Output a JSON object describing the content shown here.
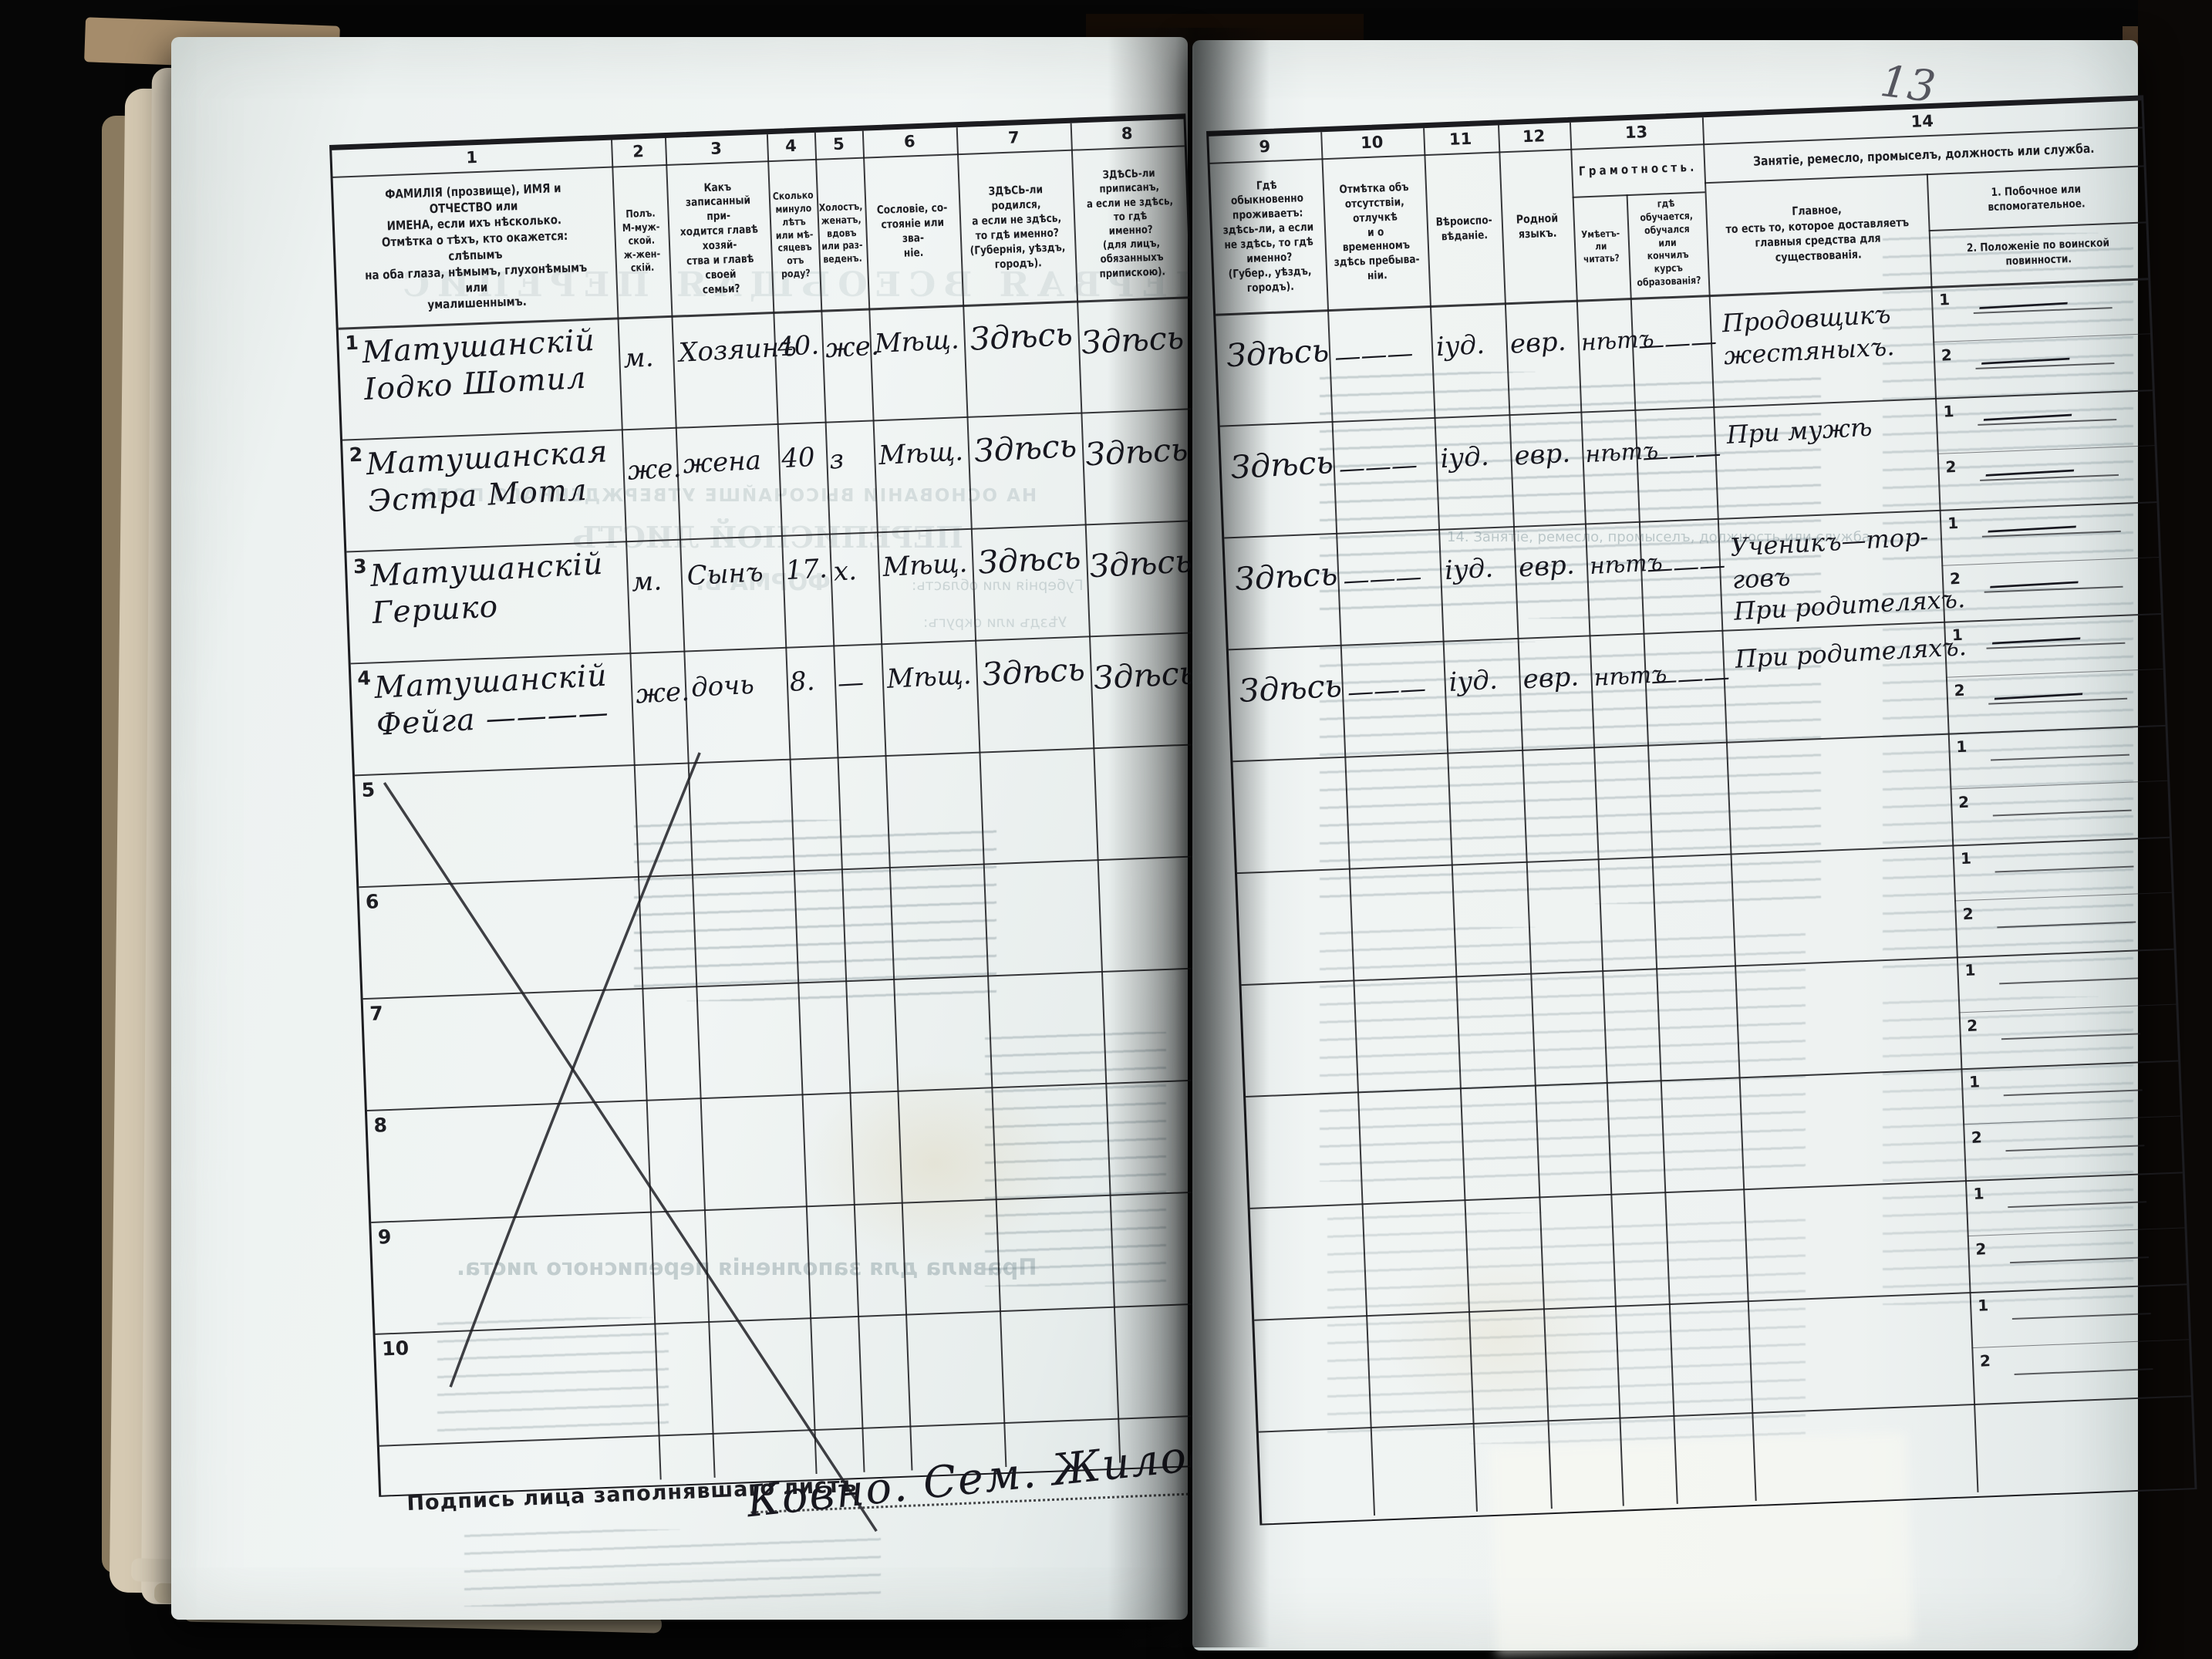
{
  "folio_number": "13",
  "signature": {
    "label": "Подпись лица заполнявшаго листъ",
    "value": "Ковно. Сем. Жилович"
  },
  "table": {
    "sub_labels": [
      "1",
      "2"
    ],
    "columns": [
      {
        "num": "1",
        "header": "ФАМИЛІЯ (прозвище), ИМЯ и ОТЧЕСТВО или\nИМЕНА, если ихъ нѣсколько.\nОтмѣтка о тѣхъ, кто окажется: слѣпымъ\nна оба глаза, нѣмымъ, глухонѣмымъ или\nумалишеннымъ."
      },
      {
        "num": "2",
        "header": "Полъ.\nМ-муж-\nской.\nж-жен-\nскій."
      },
      {
        "num": "3",
        "header": "Какъ записанный при-\nходится главѣ хозяй-\nства и главѣ своей\nсемьи?"
      },
      {
        "num": "4",
        "header": "Сколько\nминуло\nлѣтъ\nили мѣ-\nсяцевъ\nотъ роду?"
      },
      {
        "num": "5",
        "header": "Холостъ,\nженатъ,\nвдовъ\nили раз-\nведенъ."
      },
      {
        "num": "6",
        "header": "Сословіе, со-\nстояніе или зва-\nніе."
      },
      {
        "num": "7",
        "header": "ЗДѢСЬ-ли родился,\nа если не здѣсь,\nто гдѣ именно?\n(Губернія, уѣздъ, городъ)."
      },
      {
        "num": "8",
        "header": "ЗДѢСЬ-ли приписанъ,\nа если не здѣсь, то гдѣ\nименно?\n(для лицъ, обязанныхъ\nприпискою)."
      },
      {
        "num": "9",
        "header": "Гдѣ обыкновенно\nпроживаетъ:\nздѣсь-ли, а если\nне здѣсь, то гдѣ\nименно?\n(Губер., уѣздъ, городъ)."
      },
      {
        "num": "10",
        "header": "Отмѣтка объ\nотсутствіи, отлучкѣ\nи о временномъ\nздѣсь пребыва-\nніи."
      },
      {
        "num": "11",
        "header": "Вѣроиспо-\nвѣданіе."
      },
      {
        "num": "12",
        "header": "Родной\nязыкъ."
      },
      {
        "num": "13",
        "group": "Грамотность.",
        "sub_a": "Умѣетъ-\nли\nчитать?",
        "sub_b": "гдѣ обучается,\nобучался или\nкончилъ курсъ\nобразованія?"
      },
      {
        "num": "14",
        "group": "Занятіе, ремесло, промыселъ, должность или служба.",
        "sub_a": "Главное,\nто есть то, которое доставляетъ\nглавныя средства для существованія.",
        "sub_b1": "1. Побочное или вспомогательное.",
        "sub_b2": "2. Положеніе по воинской повинности."
      }
    ],
    "rows": [
      {
        "n": "1",
        "name": "Матушанскій\nІодко Шотил",
        "sex": "м.",
        "rel": "Хозяинъ",
        "age": "40.",
        "mar": "же.",
        "est": "Мѣщ.",
        "born": "Здѣсь",
        "reg": "Здѣсь",
        "res": "Здѣсь",
        "abs": "———",
        "faith": "іуд.",
        "lang": "евр.",
        "read": "нѣтъ",
        "edu": "———",
        "occ": "Продовщикъ\nжестяныхъ.",
        "s1": "———",
        "s2": "———"
      },
      {
        "n": "2",
        "name": "Матушанская\nЭстра Мотл",
        "sex": "же.",
        "rel": "жена",
        "age": "40",
        "mar": "з",
        "est": "Мѣщ.",
        "born": "Здѣсь",
        "reg": "Здѣсь",
        "res": "Здѣсь",
        "abs": "———",
        "faith": "іуд.",
        "lang": "евр.",
        "read": "нѣтъ",
        "edu": "———",
        "occ": "При мужѣ",
        "s1": "———",
        "s2": "———"
      },
      {
        "n": "3",
        "name": "Матушанскій\nГершко",
        "sex": "м.",
        "rel": "Сынъ",
        "age": "17.",
        "mar": "х.",
        "est": "Мѣщ.",
        "born": "Здѣсь",
        "reg": "Здѣсь",
        "res": "Здѣсь",
        "abs": "———",
        "faith": "іуд.",
        "lang": "евр.",
        "read": "нѣтъ",
        "edu": "———",
        "occ": "Ученикъ—тор-\nговъ\nПри родителяхъ.",
        "s1": "———",
        "s2": "———"
      },
      {
        "n": "4",
        "name": "Матушанскій\nФейга ————",
        "sex": "же.",
        "rel": "дочь",
        "age": "8.",
        "mar": "—",
        "est": "Мѣщ.",
        "born": "Здѣсь",
        "reg": "Здѣсь",
        "res": "Здѣсь",
        "abs": "———",
        "faith": "іуд.",
        "lang": "евр.",
        "read": "нѣтъ",
        "edu": "———",
        "occ": "При родителяхъ.",
        "s1": "———",
        "s2": "———"
      },
      {
        "n": "5",
        "name": "",
        "sex": "",
        "rel": "",
        "age": "",
        "mar": "",
        "est": "",
        "born": "",
        "reg": "",
        "res": "",
        "abs": "",
        "faith": "",
        "lang": "",
        "read": "",
        "edu": "",
        "occ": "",
        "s1": "",
        "s2": ""
      },
      {
        "n": "6",
        "name": "",
        "sex": "",
        "rel": "",
        "age": "",
        "mar": "",
        "est": "",
        "born": "",
        "reg": "",
        "res": "",
        "abs": "",
        "faith": "",
        "lang": "",
        "read": "",
        "edu": "",
        "occ": "",
        "s1": "",
        "s2": ""
      },
      {
        "n": "7",
        "name": "",
        "sex": "",
        "rel": "",
        "age": "",
        "mar": "",
        "est": "",
        "born": "",
        "reg": "",
        "res": "",
        "abs": "",
        "faith": "",
        "lang": "",
        "read": "",
        "edu": "",
        "occ": "",
        "s1": "",
        "s2": ""
      },
      {
        "n": "8",
        "name": "",
        "sex": "",
        "rel": "",
        "age": "",
        "mar": "",
        "est": "",
        "born": "",
        "reg": "",
        "res": "",
        "abs": "",
        "faith": "",
        "lang": "",
        "read": "",
        "edu": "",
        "occ": "",
        "s1": "",
        "s2": ""
      },
      {
        "n": "9",
        "name": "",
        "sex": "",
        "rel": "",
        "age": "",
        "mar": "",
        "est": "",
        "born": "",
        "reg": "",
        "res": "",
        "abs": "",
        "faith": "",
        "lang": "",
        "read": "",
        "edu": "",
        "occ": "",
        "s1": "",
        "s2": ""
      },
      {
        "n": "10",
        "name": "",
        "sex": "",
        "rel": "",
        "age": "",
        "mar": "",
        "est": "",
        "born": "",
        "reg": "",
        "res": "",
        "abs": "",
        "faith": "",
        "lang": "",
        "read": "",
        "edu": "",
        "occ": "",
        "s1": "",
        "s2": ""
      }
    ]
  },
  "bleedthrough": {
    "left": [
      "ПЕРВАЯ ВСЕОБЩАЯ ПЕРЕПИС",
      "НА ОСНОВАНІИ ВЫСОЧАЙШЕ УТВЕРЖДЕННАГО ПОЛО",
      "ПЕРЕПИСНОЙ ЛИСТЪ",
      "ФОРМА Б.",
      "Губернія или область:",
      "Уѣздъ или округъ:",
      "Правила для заполненія переписного листа."
    ],
    "right": [
      "14. Занятіе, ремесло, промыселъ, должность или служба."
    ]
  }
}
